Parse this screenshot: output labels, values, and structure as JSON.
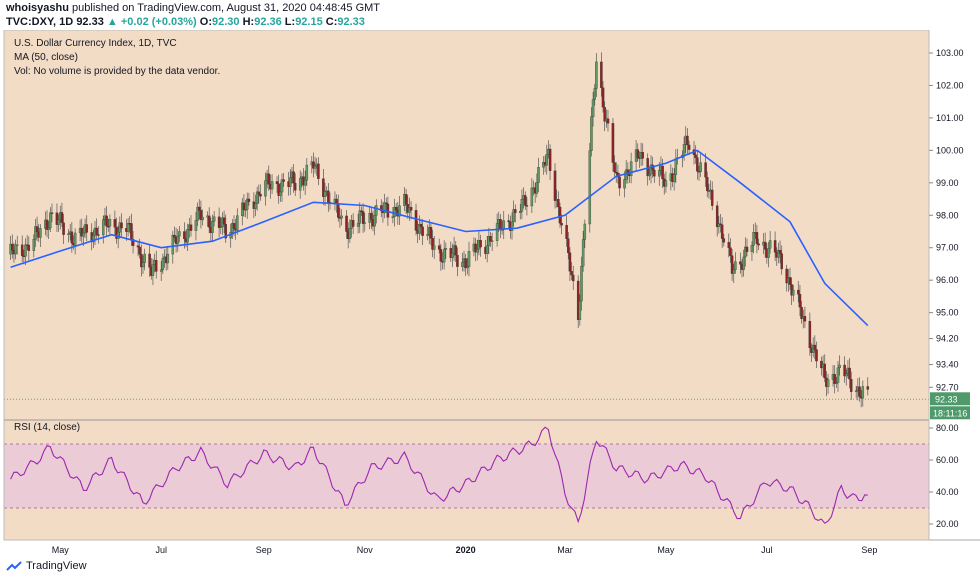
{
  "header": {
    "publisher": "whoisyashu",
    "published_text": "published on TradingView.com, August 31, 2020 04:48:45 GMT",
    "symbol": "TVC:DXY, 1D",
    "last": "92.33",
    "change": "+0.02 (+0.03%)",
    "ohlc": [
      {
        "label": "O:",
        "value": "92.30"
      },
      {
        "label": "H:",
        "value": "92.36"
      },
      {
        "label": "L:",
        "value": "92.15"
      },
      {
        "label": "C:",
        "value": "92.33"
      }
    ]
  },
  "legend": {
    "title": "U.S. Dollar Currency Index, 1D, TVC",
    "ma": "MA (50, close)",
    "vol": "Vol: No volume is provided by the data vendor."
  },
  "rsi_label": "RSI (14, close)",
  "price_badge": "92.33",
  "time_badge": "18:11:16",
  "footer_brand": "TradingView",
  "colors": {
    "bg": "#f2dcc6",
    "up": "#5e9a5e",
    "down": "#8e2323",
    "ma": "#2962ff",
    "rsi": "#9c27b0",
    "rsi_band": "#ebcbd6",
    "badge": "#4e9a6b"
  },
  "chart_data": [
    {
      "type": "candlestick",
      "title": "U.S. Dollar Currency Index, 1D, TVC",
      "ylim": [
        92.0,
        103.4
      ],
      "price_ticks": [
        "103.00",
        "102.00",
        "101.00",
        "100.00",
        "99.00",
        "98.00",
        "97.00",
        "96.00",
        "95.00",
        "94.20",
        "93.40",
        "92.70"
      ],
      "x_ticks": [
        "May",
        "Jul",
        "Sep",
        "Nov",
        "2020",
        "Mar",
        "May",
        "Jul",
        "Sep"
      ],
      "close_path": [
        {
          "date": "2019-04-01",
          "close": 96.8
        },
        {
          "date": "2019-04-15",
          "close": 97.2
        },
        {
          "date": "2019-04-25",
          "close": 98.0
        },
        {
          "date": "2019-05-10",
          "close": 97.3
        },
        {
          "date": "2019-05-30",
          "close": 97.7
        },
        {
          "date": "2019-06-10",
          "close": 97.6
        },
        {
          "date": "2019-06-25",
          "close": 96.2
        },
        {
          "date": "2019-07-10",
          "close": 97.2
        },
        {
          "date": "2019-07-25",
          "close": 98.0
        },
        {
          "date": "2019-08-10",
          "close": 97.5
        },
        {
          "date": "2019-09-01",
          "close": 98.9
        },
        {
          "date": "2019-09-20",
          "close": 99.0
        },
        {
          "date": "2019-10-01",
          "close": 99.5
        },
        {
          "date": "2019-10-20",
          "close": 97.6
        },
        {
          "date": "2019-11-05",
          "close": 98.0
        },
        {
          "date": "2019-11-25",
          "close": 98.3
        },
        {
          "date": "2019-12-15",
          "close": 96.9
        },
        {
          "date": "2020-01-01",
          "close": 96.6
        },
        {
          "date": "2020-01-20",
          "close": 97.5
        },
        {
          "date": "2020-02-05",
          "close": 98.3
        },
        {
          "date": "2020-02-20",
          "close": 99.8
        },
        {
          "date": "2020-03-01",
          "close": 97.2
        },
        {
          "date": "2020-03-09",
          "close": 95.0
        },
        {
          "date": "2020-03-20",
          "close": 102.8
        },
        {
          "date": "2020-04-01",
          "close": 99.0
        },
        {
          "date": "2020-04-15",
          "close": 99.8
        },
        {
          "date": "2020-05-01",
          "close": 99.0
        },
        {
          "date": "2020-05-15",
          "close": 100.3
        },
        {
          "date": "2020-06-01",
          "close": 98.0
        },
        {
          "date": "2020-06-10",
          "close": 96.3
        },
        {
          "date": "2020-06-25",
          "close": 97.3
        },
        {
          "date": "2020-07-10",
          "close": 96.6
        },
        {
          "date": "2020-07-25",
          "close": 94.5
        },
        {
          "date": "2020-08-05",
          "close": 92.9
        },
        {
          "date": "2020-08-15",
          "close": 93.2
        },
        {
          "date": "2020-08-31",
          "close": 92.33
        }
      ],
      "ma50": [
        {
          "date": "2019-04-01",
          "value": 96.4
        },
        {
          "date": "2019-05-01",
          "value": 96.9
        },
        {
          "date": "2019-06-01",
          "value": 97.4
        },
        {
          "date": "2019-07-01",
          "value": 97.0
        },
        {
          "date": "2019-08-01",
          "value": 97.2
        },
        {
          "date": "2019-09-01",
          "value": 97.8
        },
        {
          "date": "2019-10-01",
          "value": 98.4
        },
        {
          "date": "2019-11-01",
          "value": 98.3
        },
        {
          "date": "2019-12-01",
          "value": 97.9
        },
        {
          "date": "2020-01-01",
          "value": 97.5
        },
        {
          "date": "2020-02-01",
          "value": 97.6
        },
        {
          "date": "2020-03-01",
          "value": 98.0
        },
        {
          "date": "2020-04-01",
          "value": 99.2
        },
        {
          "date": "2020-05-01",
          "value": 99.6
        },
        {
          "date": "2020-05-20",
          "value": 100.0
        },
        {
          "date": "2020-06-15",
          "value": 99.0
        },
        {
          "date": "2020-07-15",
          "value": 97.8
        },
        {
          "date": "2020-08-05",
          "value": 95.9
        },
        {
          "date": "2020-08-31",
          "value": 94.6
        }
      ]
    },
    {
      "type": "line",
      "title": "RSI (14, close)",
      "ylim": [
        10,
        85
      ],
      "band": [
        30,
        70
      ],
      "y_ticks": [
        "80.00",
        "60.00",
        "40.00",
        "20.00"
      ],
      "values": [
        {
          "date": "2019-04-01",
          "value": 48
        },
        {
          "date": "2019-04-15",
          "value": 58
        },
        {
          "date": "2019-04-25",
          "value": 68
        },
        {
          "date": "2019-05-15",
          "value": 42
        },
        {
          "date": "2019-06-01",
          "value": 60
        },
        {
          "date": "2019-06-20",
          "value": 33
        },
        {
          "date": "2019-07-10",
          "value": 55
        },
        {
          "date": "2019-07-25",
          "value": 65
        },
        {
          "date": "2019-08-10",
          "value": 45
        },
        {
          "date": "2019-09-01",
          "value": 64
        },
        {
          "date": "2019-09-20",
          "value": 55
        },
        {
          "date": "2019-10-01",
          "value": 67
        },
        {
          "date": "2019-10-20",
          "value": 32
        },
        {
          "date": "2019-11-05",
          "value": 55
        },
        {
          "date": "2019-11-25",
          "value": 62
        },
        {
          "date": "2019-12-15",
          "value": 35
        },
        {
          "date": "2020-01-01",
          "value": 45
        },
        {
          "date": "2020-01-20",
          "value": 60
        },
        {
          "date": "2020-02-10",
          "value": 70
        },
        {
          "date": "2020-02-20",
          "value": 80
        },
        {
          "date": "2020-03-01",
          "value": 40
        },
        {
          "date": "2020-03-09",
          "value": 20
        },
        {
          "date": "2020-03-20",
          "value": 74
        },
        {
          "date": "2020-04-01",
          "value": 55
        },
        {
          "date": "2020-04-20",
          "value": 48
        },
        {
          "date": "2020-05-10",
          "value": 57
        },
        {
          "date": "2020-05-25",
          "value": 50
        },
        {
          "date": "2020-06-05",
          "value": 36
        },
        {
          "date": "2020-06-15",
          "value": 24
        },
        {
          "date": "2020-07-01",
          "value": 47
        },
        {
          "date": "2020-07-15",
          "value": 42
        },
        {
          "date": "2020-07-28",
          "value": 29
        },
        {
          "date": "2020-08-05",
          "value": 18
        },
        {
          "date": "2020-08-15",
          "value": 42
        },
        {
          "date": "2020-08-22",
          "value": 36
        },
        {
          "date": "2020-08-31",
          "value": 38
        }
      ]
    }
  ]
}
